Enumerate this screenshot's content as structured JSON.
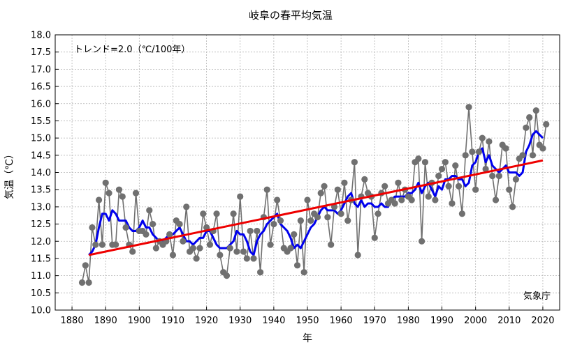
{
  "chart_data": {
    "type": "line",
    "title": "岐阜の春平均気温",
    "xlabel": "年",
    "ylabel": "気温（℃）",
    "trend_label": "トレンド=2.0（℃/100年）",
    "source_label": "気象庁",
    "xlim": [
      1875,
      2025
    ],
    "ylim": [
      10.0,
      18.0
    ],
    "x_ticks": [
      1880,
      1890,
      1900,
      1910,
      1920,
      1930,
      1940,
      1950,
      1960,
      1970,
      1980,
      1990,
      2000,
      2010,
      2020
    ],
    "y_ticks": [
      "10.0",
      "10.5",
      "11.0",
      "11.5",
      "12.0",
      "12.5",
      "13.0",
      "13.5",
      "14.0",
      "14.5",
      "15.0",
      "15.5",
      "16.0",
      "16.5",
      "17.0",
      "17.5",
      "18.0"
    ],
    "grid": true,
    "colors": {
      "annual": "#707070",
      "moving_avg": "#0000ee",
      "trend": "#ee0000"
    },
    "series": [
      {
        "key": "annual",
        "x_start": 1883,
        "values": [
          10.8,
          11.3,
          10.8,
          12.4,
          11.9,
          13.2,
          11.9,
          13.7,
          13.4,
          11.9,
          11.9,
          13.5,
          13.3,
          12.4,
          11.9,
          11.7,
          13.4,
          12.3,
          12.3,
          12.2,
          12.9,
          12.5,
          11.8,
          12.0,
          11.9,
          12.0,
          12.2,
          11.6,
          12.6,
          12.5,
          12.0,
          13.0,
          11.7,
          11.8,
          11.5,
          11.8,
          12.8,
          12.4,
          11.9,
          12.3,
          12.8,
          11.6,
          11.1,
          11.0,
          11.8,
          12.8,
          11.7,
          13.3,
          11.7,
          11.5,
          12.3,
          11.5,
          12.3,
          11.1,
          12.7,
          13.5,
          11.9,
          12.5,
          13.2,
          12.6,
          11.8,
          11.7,
          11.8,
          12.2,
          11.3,
          12.6,
          11.1,
          13.2,
          12.6,
          12.8,
          12.7,
          13.4,
          13.6,
          12.7,
          11.9,
          13.0,
          13.5,
          12.8,
          13.7,
          12.6,
          13.2,
          14.3,
          11.6,
          13.3,
          13.8,
          13.4,
          13.3,
          12.1,
          12.8,
          13.4,
          13.6,
          13.1,
          13.2,
          13.1,
          13.7,
          13.2,
          13.5,
          13.3,
          13.2,
          14.3,
          14.4,
          12.0,
          14.3,
          13.3,
          13.7,
          13.2,
          13.9,
          14.1,
          14.3,
          13.6,
          13.1,
          14.2,
          13.6,
          12.8,
          14.5,
          15.9,
          14.6,
          13.5,
          14.6,
          15.0,
          14.1,
          14.9,
          13.9,
          13.2,
          13.9,
          14.8,
          14.7,
          13.5,
          13.0,
          13.8,
          14.4,
          14.5,
          15.3,
          15.6,
          14.5,
          15.8,
          14.8,
          14.7,
          15.4
        ]
      },
      {
        "key": "moving_avg",
        "x_start": 1885,
        "values": [
          11.6,
          11.7,
          11.9,
          12.4,
          12.8,
          12.8,
          12.6,
          12.9,
          12.8,
          12.6,
          12.6,
          12.6,
          12.4,
          12.3,
          12.3,
          12.4,
          12.6,
          12.4,
          12.4,
          12.2,
          12.1,
          12.0,
          12.0,
          12.1,
          12.2,
          12.2,
          12.3,
          12.4,
          12.2,
          12.0,
          12.0,
          11.9,
          12.0,
          12.1,
          12.1,
          12.3,
          12.3,
          12.1,
          11.9,
          11.8,
          11.8,
          11.8,
          11.9,
          12.0,
          12.3,
          12.2,
          12.2,
          12.0,
          11.7,
          11.6,
          12.0,
          12.2,
          12.3,
          12.5,
          12.6,
          12.7,
          12.8,
          12.5,
          12.4,
          12.3,
          12.1,
          11.8,
          11.9,
          11.8,
          12.0,
          12.2,
          12.4,
          12.5,
          12.7,
          12.9,
          13.0,
          12.9,
          12.9,
          12.9,
          12.8,
          12.9,
          13.1,
          13.3,
          13.4,
          13.1,
          13.0,
          13.2,
          13.0,
          13.1,
          13.1,
          13.0,
          13.0,
          13.1,
          13.0,
          13.0,
          13.2,
          13.3,
          13.3,
          13.3,
          13.3,
          13.4,
          13.4,
          13.5,
          13.7,
          13.4,
          13.6,
          13.7,
          13.5,
          13.3,
          13.6,
          13.5,
          13.8,
          13.8,
          13.9,
          13.9,
          13.8,
          13.8,
          13.6,
          13.7,
          14.2,
          14.3,
          14.6,
          14.7,
          14.3,
          14.5,
          14.2,
          14.1,
          14.0,
          14.1,
          14.2,
          14.0,
          14.0,
          14.0,
          13.9,
          14.0,
          14.6,
          14.8,
          15.1,
          15.2,
          15.1,
          15.0
        ]
      },
      {
        "key": "trend",
        "x": [
          1885,
          2020
        ],
        "values": [
          11.6,
          14.35
        ]
      }
    ]
  }
}
